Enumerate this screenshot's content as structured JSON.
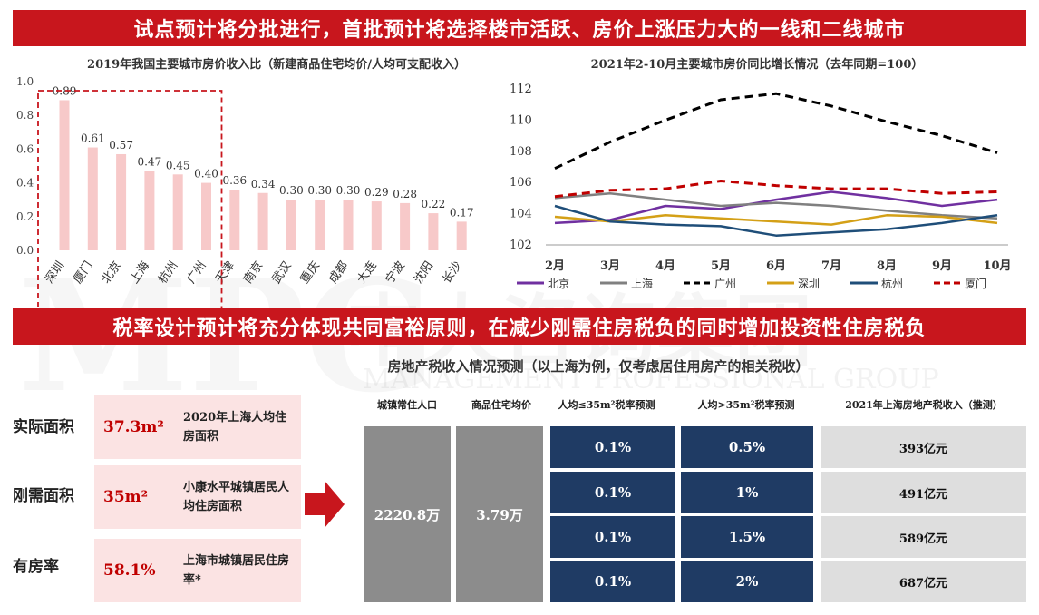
{
  "banner_top": "试点预计将分批进行，首批预计将选择楼市活跃、房价上涨压力大的一线和二线城市",
  "banner_mid": "税率设计预计将充分体现共同富裕原则，在减少刚需住房税负的同时增加投资性住房税负",
  "watermark": {
    "logo": "MPG",
    "cn": "中大咨询集团",
    "en": "MANAGEMENT PROFESSIONAL GROUP"
  },
  "chart_data": [
    {
      "type": "bar",
      "title": "2019年我国主要城市房价收入比（新建商品住宅均价/人均可支配收入）",
      "categories": [
        "深圳",
        "厦门",
        "北京",
        "上海",
        "杭州",
        "广州",
        "天津",
        "南京",
        "武汉",
        "重庆",
        "成都",
        "大连",
        "宁波",
        "沈阳",
        "长沙"
      ],
      "values": [
        0.89,
        0.61,
        0.57,
        0.47,
        0.45,
        0.4,
        0.36,
        0.34,
        0.3,
        0.3,
        0.3,
        0.29,
        0.28,
        0.22,
        0.17
      ],
      "value_labels": [
        "0.89",
        "0.61",
        "0.57",
        "0.47",
        "0.45",
        "0.40",
        "0.36",
        "0.34",
        "0.30",
        "0.30",
        "0.30",
        "0.29",
        "0.28",
        "0.22",
        "0.17"
      ],
      "yticks": [
        "0.0",
        "0.2",
        "0.4",
        "0.6",
        "0.8",
        "1.0"
      ],
      "ylim": [
        0,
        1.0
      ],
      "highlight": {
        "from": 0,
        "to": 5,
        "style": "red dashed box"
      },
      "bar_color": "#f7c9c9"
    },
    {
      "type": "line",
      "title": "2021年2-10月主要城市房价同比增长情况（去年同期=100）",
      "categories": [
        "2月",
        "3月",
        "4月",
        "5月",
        "6月",
        "7月",
        "8月",
        "9月",
        "10月"
      ],
      "yticks": [
        "102",
        "104",
        "106",
        "108",
        "110",
        "112"
      ],
      "ylim": [
        102,
        112
      ],
      "legend_position": "bottom",
      "series": [
        {
          "name": "北京",
          "color": "#7030a0",
          "dash": false,
          "values": [
            103.4,
            103.6,
            104.5,
            104.3,
            104.9,
            105.4,
            105.0,
            104.5,
            104.9
          ]
        },
        {
          "name": "上海",
          "color": "#808080",
          "dash": false,
          "values": [
            105.0,
            105.3,
            104.9,
            104.5,
            104.7,
            104.5,
            104.2,
            103.9,
            103.7
          ]
        },
        {
          "name": "广州",
          "color": "#000000",
          "dash": true,
          "values": [
            106.9,
            108.6,
            110.0,
            111.3,
            111.7,
            110.9,
            109.9,
            109.0,
            107.9
          ]
        },
        {
          "name": "深圳",
          "color": "#d4a017",
          "dash": false,
          "values": [
            103.8,
            103.5,
            103.9,
            103.7,
            103.5,
            103.3,
            103.9,
            103.8,
            103.4
          ]
        },
        {
          "name": "杭州",
          "color": "#1f4e79",
          "dash": false,
          "values": [
            104.5,
            103.5,
            103.3,
            103.2,
            102.6,
            102.8,
            103.0,
            103.4,
            103.9
          ]
        },
        {
          "name": "厦门",
          "color": "#c00000",
          "dash": true,
          "values": [
            105.1,
            105.5,
            105.6,
            106.1,
            105.8,
            105.6,
            105.6,
            105.3,
            105.4
          ]
        }
      ]
    }
  ],
  "left_rows": [
    {
      "label": "实际面积",
      "value": "37.3m²",
      "desc": "2020年上海人均住房面积"
    },
    {
      "label": "刚需面积",
      "value": "35m²",
      "desc": "小康水平城镇居民人均住房面积"
    },
    {
      "label": "有房率",
      "value": "58.1%",
      "desc": "上海市城镇居民住房率*"
    }
  ],
  "table": {
    "title": "房地产税收入情况预测（以上海为例，仅考虑居住用房产的相关税收）",
    "headers": [
      "城镇常住人口",
      "商品住宅均价",
      "人均≤35m²税率预测",
      "人均>35m²税率预测",
      "2021年上海房地产税收入（推测）"
    ],
    "population": "2220.8万",
    "avg_price": "3.79万",
    "rows": [
      {
        "low": "0.1%",
        "high": "0.5%",
        "revenue": "393亿元"
      },
      {
        "low": "0.1%",
        "high": "1%",
        "revenue": "491亿元"
      },
      {
        "low": "0.1%",
        "high": "1.5%",
        "revenue": "589亿元"
      },
      {
        "low": "0.1%",
        "high": "2%",
        "revenue": "687亿元"
      }
    ]
  },
  "colors": {
    "accent": "#c8161d",
    "navy": "#1f3b64",
    "pink": "#fbe3e3"
  }
}
